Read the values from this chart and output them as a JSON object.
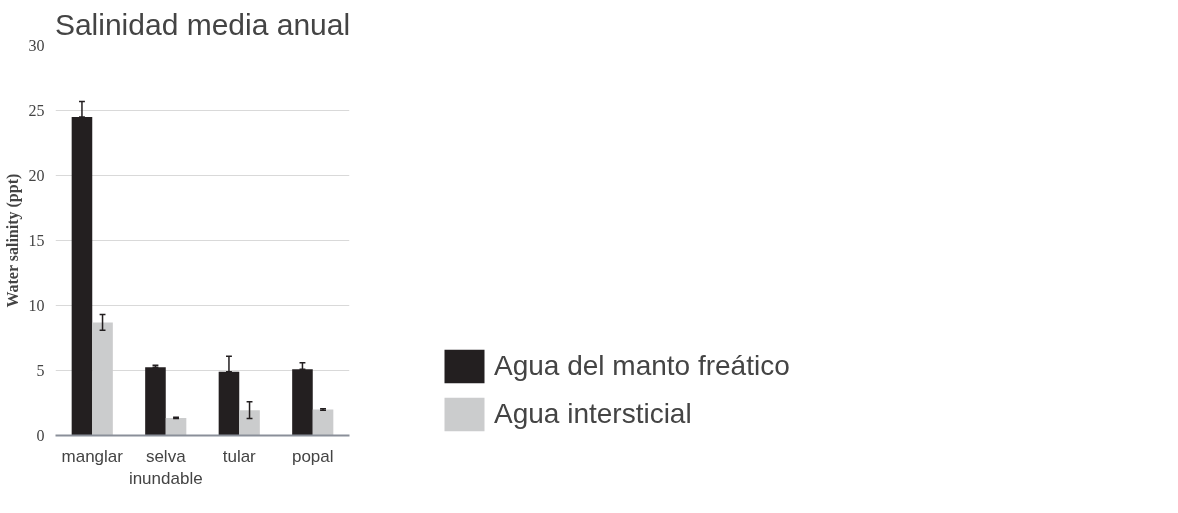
{
  "chart_data": {
    "type": "bar",
    "title": "Salinidad media anual",
    "ylabel": "Water salinity (ppt)",
    "categories": [
      "manglar",
      "selva inundable",
      "tular",
      "popal"
    ],
    "series": [
      {
        "name": "Agua del manto freático",
        "color": "#231f20",
        "values": [
          24.5,
          5.25,
          4.9,
          5.1
        ],
        "errors": [
          [
            24.5,
            25.7
          ],
          [
            5.25,
            5.4
          ],
          [
            4.9,
            6.1
          ],
          [
            5.1,
            5.6
          ]
        ]
      },
      {
        "name": "Agua intersticial",
        "color": "#cbcccd",
        "values": [
          8.7,
          1.35,
          1.95,
          2.0
        ],
        "errors": [
          0.6,
          0.05,
          0.65,
          0.05
        ]
      }
    ],
    "ylim": [
      0,
      30
    ],
    "yticks": [
      0,
      5,
      10,
      15,
      20,
      25,
      30
    ],
    "grid": "y",
    "legend": "bottom right"
  }
}
